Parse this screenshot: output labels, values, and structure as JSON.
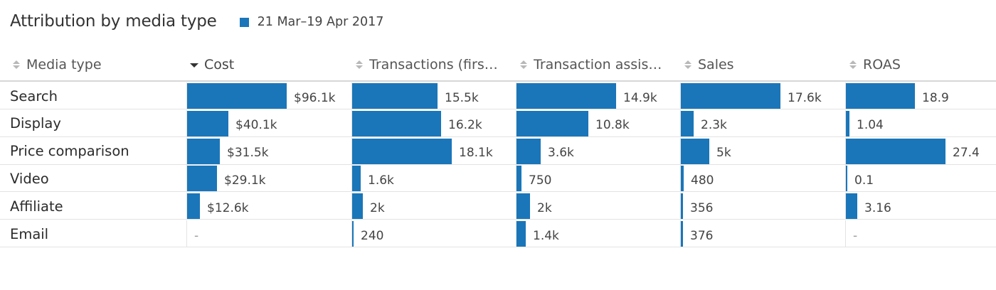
{
  "title": "Attribution by media type",
  "legend": {
    "label": "21 Mar–19 Apr 2017"
  },
  "colors": {
    "bar": "#1a76b9",
    "sort_icon": "#b8b8b8",
    "sort_active": "#333333"
  },
  "icons": {
    "sort": "sort-both-icon",
    "sort_desc": "sort-descending-icon"
  },
  "chart_data": {
    "type": "table",
    "title": "Attribution by media type",
    "series_label": "21 Mar–19 Apr 2017",
    "row_header": "Media type",
    "sorted_by": "Cost",
    "sort_direction": "descending",
    "columns": [
      {
        "key": "cost",
        "label": "Cost",
        "display": [
          "$96.1k",
          "$40.1k",
          "$31.5k",
          "$29.1k",
          "$12.6k",
          "-"
        ],
        "values": [
          96100,
          40100,
          31500,
          29100,
          12600,
          null
        ]
      },
      {
        "key": "transactions_first",
        "label": "Transactions (firs…",
        "display": [
          "15.5k",
          "16.2k",
          "18.1k",
          "1.6k",
          "2k",
          "240"
        ],
        "values": [
          15500,
          16200,
          18100,
          1600,
          2000,
          240
        ]
      },
      {
        "key": "transaction_assists",
        "label": "Transaction assis…",
        "display": [
          "14.9k",
          "10.8k",
          "3.6k",
          "750",
          "2k",
          "1.4k"
        ],
        "values": [
          14900,
          10800,
          3600,
          750,
          2000,
          1400
        ]
      },
      {
        "key": "sales",
        "label": "Sales",
        "display": [
          "17.6k",
          "2.3k",
          "5k",
          "480",
          "356",
          "376"
        ],
        "values": [
          17600,
          2300,
          5000,
          480,
          356,
          376
        ]
      },
      {
        "key": "roas",
        "label": "ROAS",
        "display": [
          "18.9",
          "1.04",
          "27.4",
          "0.1",
          "3.16",
          "-"
        ],
        "values": [
          18.9,
          1.04,
          27.4,
          0.1,
          3.16,
          null
        ]
      }
    ],
    "rows": [
      "Search",
      "Display",
      "Price comparison",
      "Video",
      "Affiliate",
      "Email"
    ]
  }
}
